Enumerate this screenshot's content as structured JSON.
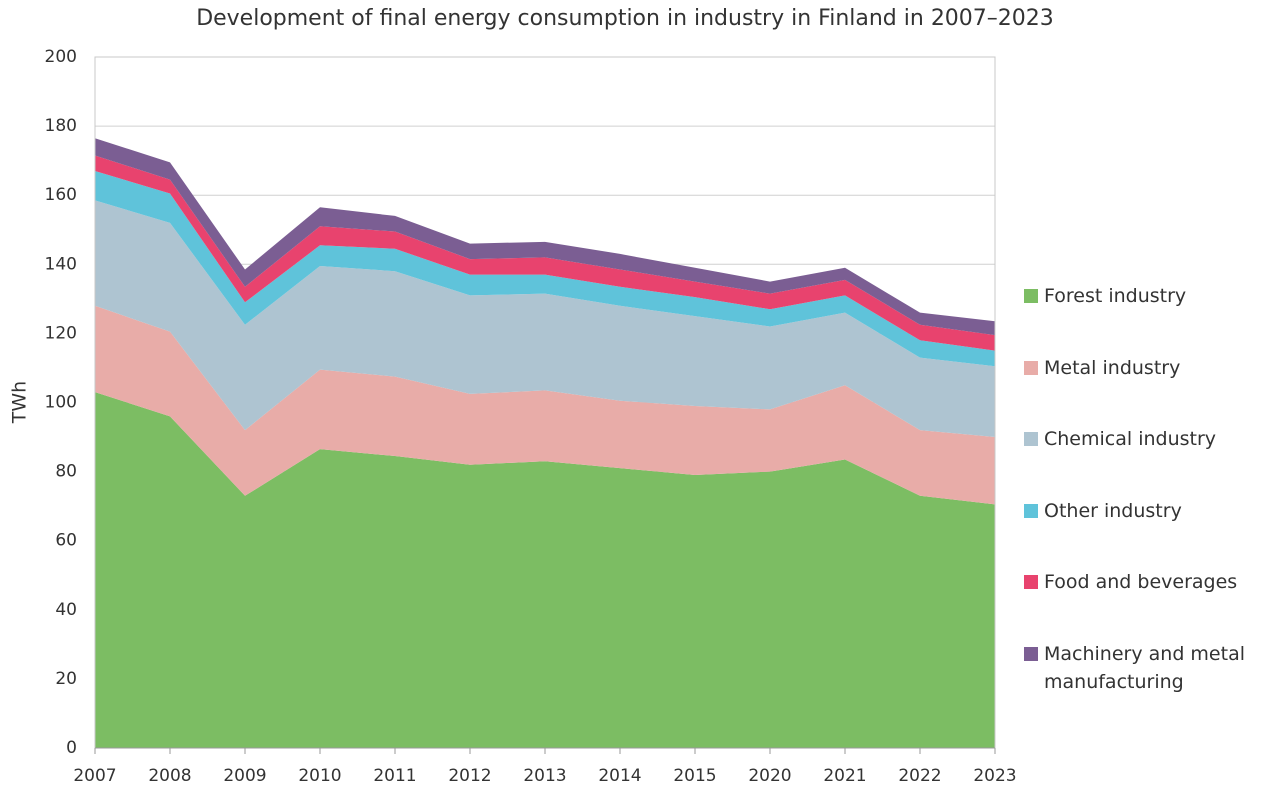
{
  "chart_data": {
    "type": "stacked-area",
    "title": "Development of final energy consumption in industry in Finland in 2007–2023",
    "ylabel": "TWh",
    "categories": [
      "2007",
      "2008",
      "2009",
      "2010",
      "2011",
      "2012",
      "2013",
      "2014",
      "2015",
      "2020",
      "2021",
      "2022",
      "2023"
    ],
    "ylim": [
      0,
      200
    ],
    "yticks": [
      0,
      20,
      40,
      60,
      80,
      100,
      120,
      140,
      160,
      180,
      200
    ],
    "grid": true,
    "series": [
      {
        "name": "Forest industry",
        "color": "#7cbd63",
        "values": [
          103,
          96,
          73,
          86.5,
          84.5,
          82,
          83,
          81,
          79,
          80,
          83.5,
          73,
          70.5
        ]
      },
      {
        "name": "Metal industry",
        "color": "#e8aca8",
        "values": [
          25,
          24.5,
          19,
          23,
          23,
          20.5,
          20.5,
          19.5,
          20,
          18,
          21.5,
          19,
          19.5
        ]
      },
      {
        "name": "Chemical industry",
        "color": "#aec4d1",
        "values": [
          30.5,
          31.5,
          30.5,
          30,
          30.5,
          28.5,
          28,
          27.5,
          26,
          24,
          21,
          21,
          20.5
        ]
      },
      {
        "name": "Other industry",
        "color": "#5fc3da",
        "values": [
          8.5,
          8.5,
          6.5,
          6,
          6.5,
          6,
          5.5,
          5.5,
          5.5,
          5,
          5,
          5,
          4.5
        ]
      },
      {
        "name": "Food and beverages",
        "color": "#e8436e",
        "values": [
          4.5,
          4,
          4.5,
          5.5,
          5,
          4.5,
          5,
          5,
          4.5,
          4.5,
          4.5,
          4.5,
          4.5
        ]
      },
      {
        "name": "Machinery and metal manufacturing",
        "color": "#7b5e93",
        "values": [
          5,
          5,
          5,
          5.5,
          4.5,
          4.5,
          4.5,
          4.5,
          4,
          3.5,
          3.5,
          3.5,
          4
        ]
      }
    ]
  }
}
